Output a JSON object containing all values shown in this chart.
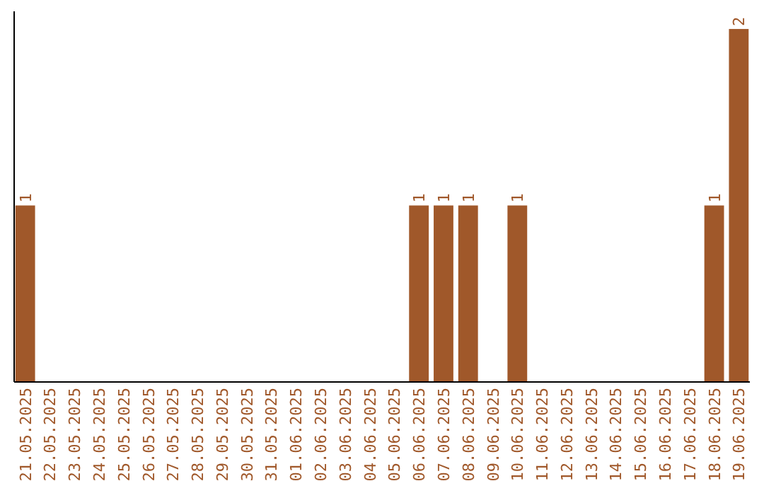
{
  "chart_data": {
    "type": "bar",
    "categories": [
      "21.05.2025",
      "22.05.2025",
      "23.05.2025",
      "24.05.2025",
      "25.05.2025",
      "26.05.2025",
      "27.05.2025",
      "28.05.2025",
      "29.05.2025",
      "30.05.2025",
      "31.05.2025",
      "01.06.2025",
      "02.06.2025",
      "03.06.2025",
      "04.06.2025",
      "05.06.2025",
      "06.06.2025",
      "07.06.2025",
      "08.06.2025",
      "09.06.2025",
      "10.06.2025",
      "11.06.2025",
      "12.06.2025",
      "13.06.2025",
      "14.06.2025",
      "15.06.2025",
      "16.06.2025",
      "17.06.2025",
      "18.06.2025",
      "19.06.2025"
    ],
    "values": [
      1,
      0,
      0,
      0,
      0,
      0,
      0,
      0,
      0,
      0,
      0,
      0,
      0,
      0,
      0,
      0,
      1,
      1,
      1,
      0,
      1,
      0,
      0,
      0,
      0,
      0,
      0,
      0,
      1,
      2
    ],
    "value_labels": [
      "1",
      null,
      null,
      null,
      null,
      null,
      null,
      null,
      null,
      null,
      null,
      null,
      null,
      null,
      null,
      null,
      "1",
      "1",
      "1",
      null,
      "1",
      null,
      null,
      null,
      null,
      null,
      null,
      null,
      "1",
      "2"
    ],
    "color": "#a0582a",
    "ylim": [
      0,
      2.1
    ],
    "tick_labels": "x"
  }
}
